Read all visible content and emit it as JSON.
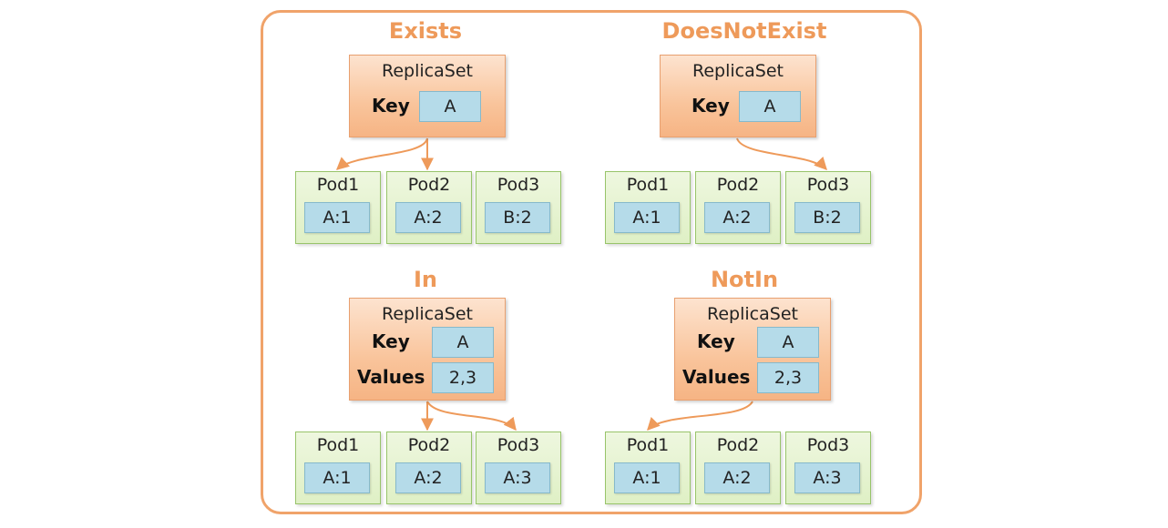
{
  "panels": [
    {
      "title": "Exists",
      "replicaset_label": "ReplicaSet",
      "key_label": "Key",
      "key_value": "A",
      "pods": [
        {
          "name": "Pod1",
          "label": "A:1"
        },
        {
          "name": "Pod2",
          "label": "A:2"
        },
        {
          "name": "Pod3",
          "label": "B:2"
        }
      ]
    },
    {
      "title": "DoesNotExist",
      "replicaset_label": "ReplicaSet",
      "key_label": "Key",
      "key_value": "A",
      "pods": [
        {
          "name": "Pod1",
          "label": "A:1"
        },
        {
          "name": "Pod2",
          "label": "A:2"
        },
        {
          "name": "Pod3",
          "label": "B:2"
        }
      ]
    },
    {
      "title": "In",
      "replicaset_label": "ReplicaSet",
      "key_label": "Key",
      "key_value": "A",
      "values_label": "Values",
      "values_value": "2,3",
      "pods": [
        {
          "name": "Pod1",
          "label": "A:1"
        },
        {
          "name": "Pod2",
          "label": "A:2"
        },
        {
          "name": "Pod3",
          "label": "A:3"
        }
      ]
    },
    {
      "title": "NotIn",
      "replicaset_label": "ReplicaSet",
      "key_label": "Key",
      "key_value": "A",
      "values_label": "Values",
      "values_value": "2,3",
      "pods": [
        {
          "name": "Pod1",
          "label": "A:1"
        },
        {
          "name": "Pod2",
          "label": "A:2"
        },
        {
          "name": "Pod3",
          "label": "A:3"
        }
      ]
    }
  ],
  "colors": {
    "frame": "#f0a36a",
    "title": "#ee9a5a",
    "arrow": "#ee9a5a",
    "replicaset_fill": "#f9c49b",
    "pod_fill": "#dff0c5",
    "label_fill": "#b5dbe9"
  }
}
